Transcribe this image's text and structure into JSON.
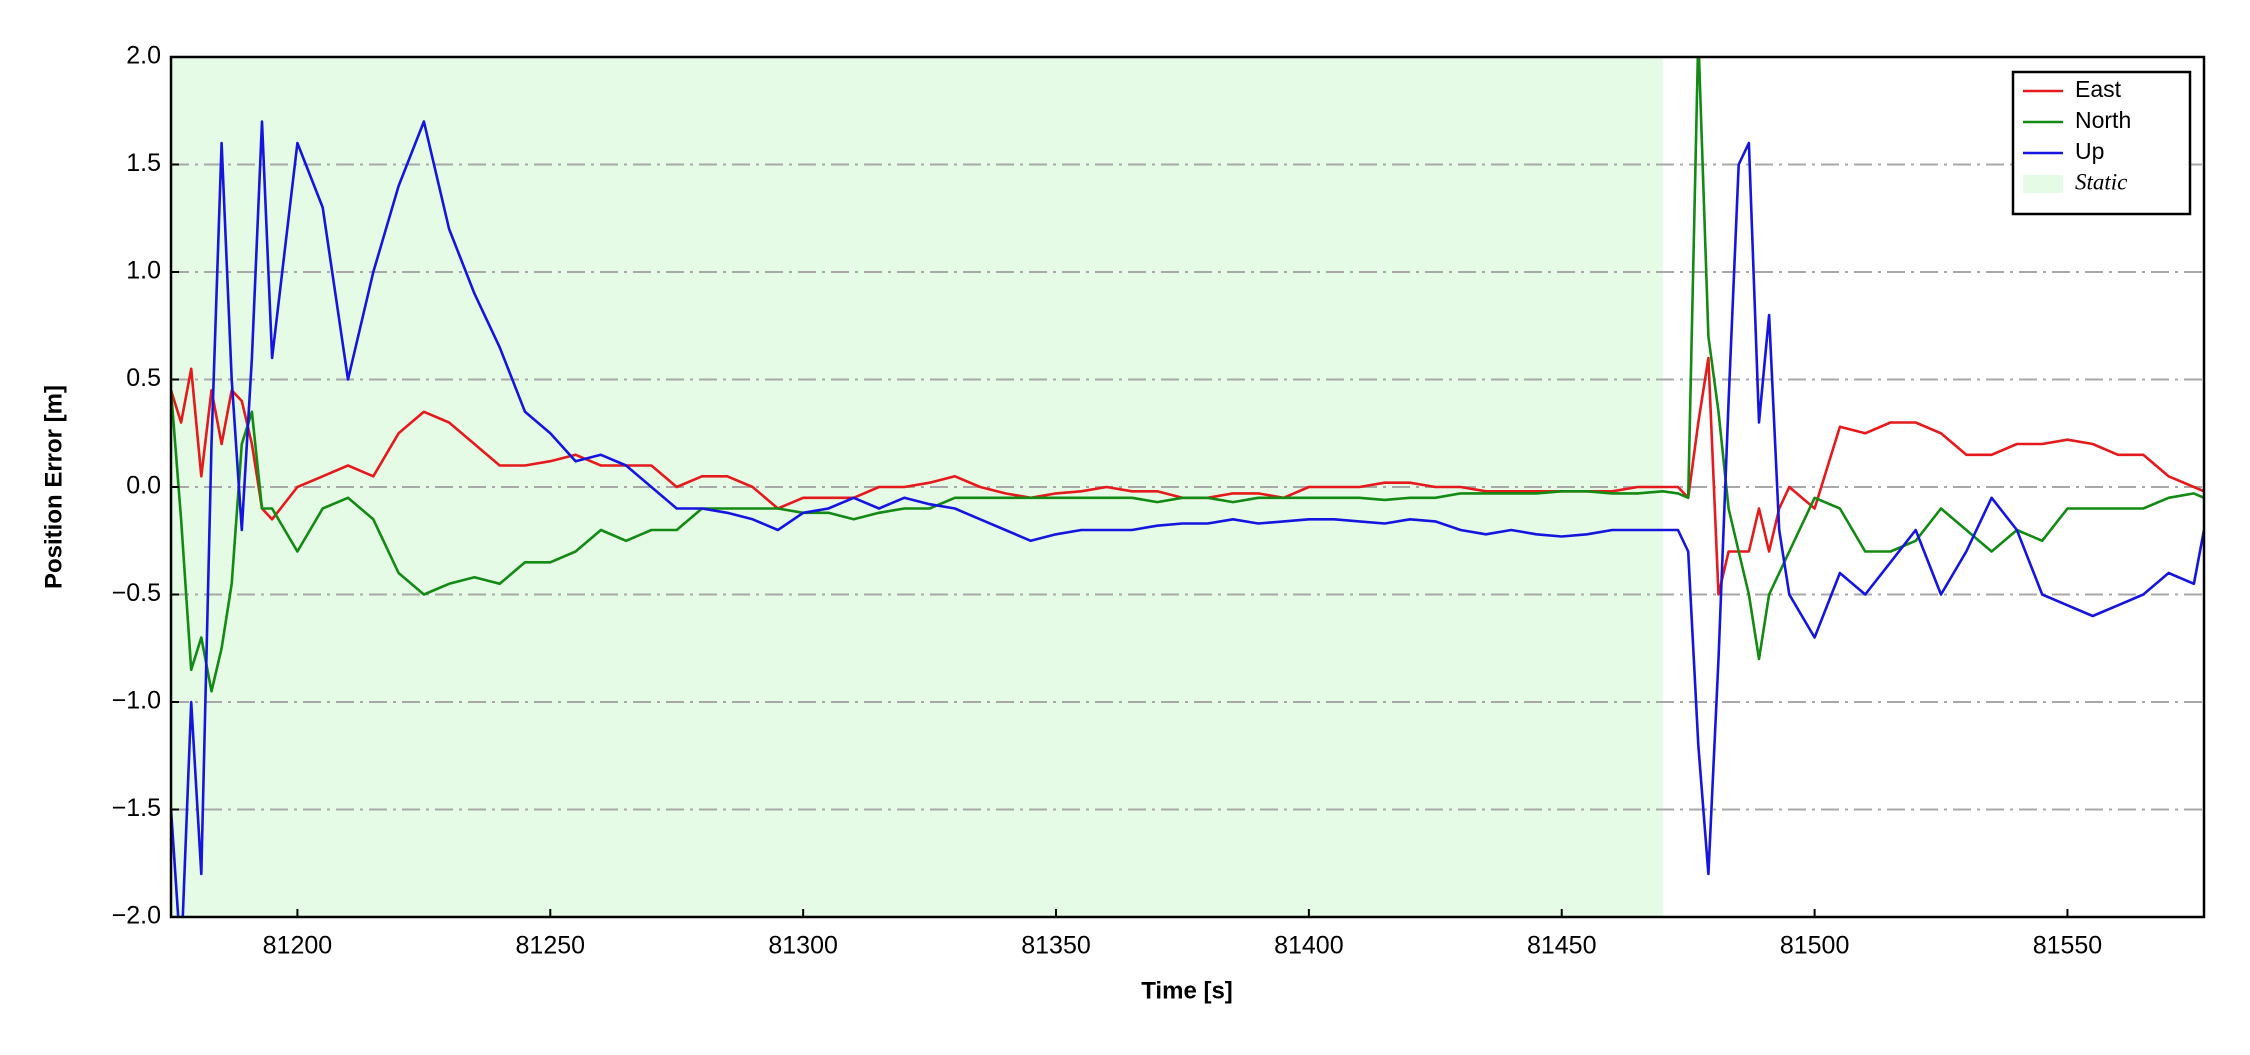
{
  "chart_data": {
    "type": "line",
    "xlabel": "Time [s]",
    "ylabel": "Position Error [m]",
    "x": [
      81175,
      81177,
      81179,
      81181,
      81183,
      81185,
      81187,
      81189,
      81191,
      81193,
      81195,
      81200,
      81205,
      81210,
      81215,
      81220,
      81225,
      81230,
      81235,
      81240,
      81245,
      81250,
      81255,
      81260,
      81265,
      81270,
      81275,
      81280,
      81285,
      81290,
      81295,
      81300,
      81305,
      81310,
      81315,
      81320,
      81325,
      81330,
      81335,
      81340,
      81345,
      81350,
      81355,
      81360,
      81365,
      81370,
      81375,
      81380,
      81385,
      81390,
      81395,
      81400,
      81405,
      81410,
      81415,
      81420,
      81425,
      81430,
      81435,
      81440,
      81445,
      81450,
      81455,
      81460,
      81465,
      81470,
      81473,
      81475,
      81477,
      81479,
      81481,
      81483,
      81485,
      81487,
      81489,
      81491,
      81493,
      81495,
      81500,
      81505,
      81510,
      81515,
      81520,
      81525,
      81530,
      81535,
      81540,
      81545,
      81550,
      81555,
      81560,
      81565,
      81570,
      81575,
      81577
    ],
    "series": [
      {
        "name": "East",
        "color": "#e41a1c",
        "values": [
          0.45,
          0.3,
          0.55,
          0.05,
          0.45,
          0.2,
          0.45,
          0.4,
          0.2,
          -0.1,
          -0.15,
          0.0,
          0.05,
          0.1,
          0.05,
          0.25,
          0.35,
          0.3,
          0.2,
          0.1,
          0.1,
          0.12,
          0.15,
          0.1,
          0.1,
          0.1,
          0.0,
          0.05,
          0.05,
          0.0,
          -0.1,
          -0.05,
          -0.05,
          -0.05,
          0.0,
          0.0,
          0.02,
          0.05,
          0.0,
          -0.03,
          -0.05,
          -0.03,
          -0.02,
          0.0,
          -0.02,
          -0.02,
          -0.05,
          -0.05,
          -0.03,
          -0.03,
          -0.05,
          0.0,
          0.0,
          0.0,
          0.02,
          0.02,
          0.0,
          0.0,
          -0.02,
          -0.02,
          -0.02,
          -0.02,
          -0.02,
          -0.02,
          0.0,
          0.0,
          0.0,
          -0.05,
          0.3,
          0.6,
          -0.5,
          -0.3,
          -0.3,
          -0.3,
          -0.1,
          -0.3,
          -0.1,
          0.0,
          -0.1,
          0.28,
          0.25,
          0.3,
          0.3,
          0.25,
          0.15,
          0.15,
          0.2,
          0.2,
          0.22,
          0.2,
          0.15,
          0.15,
          0.05,
          0.0,
          -0.02
        ]
      },
      {
        "name": "North",
        "color": "#138a13",
        "values": [
          0.45,
          -0.15,
          -0.85,
          -0.7,
          -0.95,
          -0.75,
          -0.45,
          0.2,
          0.35,
          -0.1,
          -0.1,
          -0.3,
          -0.1,
          -0.05,
          -0.15,
          -0.4,
          -0.5,
          -0.45,
          -0.42,
          -0.45,
          -0.35,
          -0.35,
          -0.3,
          -0.2,
          -0.25,
          -0.2,
          -0.2,
          -0.1,
          -0.1,
          -0.1,
          -0.1,
          -0.12,
          -0.12,
          -0.15,
          -0.12,
          -0.1,
          -0.1,
          -0.05,
          -0.05,
          -0.05,
          -0.05,
          -0.05,
          -0.05,
          -0.05,
          -0.05,
          -0.07,
          -0.05,
          -0.05,
          -0.07,
          -0.05,
          -0.05,
          -0.05,
          -0.05,
          -0.05,
          -0.06,
          -0.05,
          -0.05,
          -0.03,
          -0.03,
          -0.03,
          -0.03,
          -0.02,
          -0.02,
          -0.03,
          -0.03,
          -0.02,
          -0.03,
          -0.05,
          2.1,
          0.7,
          0.35,
          -0.1,
          -0.3,
          -0.5,
          -0.8,
          -0.5,
          -0.4,
          -0.3,
          -0.05,
          -0.1,
          -0.3,
          -0.3,
          -0.25,
          -0.1,
          -0.2,
          -0.3,
          -0.2,
          -0.25,
          -0.1,
          -0.1,
          -0.1,
          -0.1,
          -0.05,
          -0.03,
          -0.05
        ]
      },
      {
        "name": "Up",
        "color": "#1515e0",
        "values": [
          -1.5,
          -2.2,
          -1.0,
          -1.8,
          0.2,
          1.6,
          0.5,
          -0.2,
          0.6,
          1.7,
          0.6,
          1.6,
          1.3,
          0.5,
          1.0,
          1.4,
          1.7,
          1.2,
          0.9,
          0.65,
          0.35,
          0.25,
          0.12,
          0.15,
          0.1,
          0.0,
          -0.1,
          -0.1,
          -0.12,
          -0.15,
          -0.2,
          -0.12,
          -0.1,
          -0.05,
          -0.1,
          -0.05,
          -0.08,
          -0.1,
          -0.15,
          -0.2,
          -0.25,
          -0.22,
          -0.2,
          -0.2,
          -0.2,
          -0.18,
          -0.17,
          -0.17,
          -0.15,
          -0.17,
          -0.16,
          -0.15,
          -0.15,
          -0.16,
          -0.17,
          -0.15,
          -0.16,
          -0.2,
          -0.22,
          -0.2,
          -0.22,
          -0.23,
          -0.22,
          -0.2,
          -0.2,
          -0.2,
          -0.2,
          -0.3,
          -1.2,
          -1.8,
          -0.8,
          0.4,
          1.5,
          1.6,
          0.3,
          0.8,
          -0.2,
          -0.5,
          -0.7,
          -0.4,
          -0.5,
          -0.35,
          -0.2,
          -0.5,
          -0.3,
          -0.05,
          -0.2,
          -0.5,
          -0.55,
          -0.6,
          -0.55,
          -0.5,
          -0.4,
          -0.45,
          -0.2
        ]
      }
    ],
    "spans": [
      {
        "name": "Static",
        "x0": 81175,
        "x1": 81470,
        "color": "#e6fbe6"
      }
    ],
    "xlim": [
      81175,
      81577
    ],
    "ylim": [
      -2.0,
      2.0
    ],
    "xticks": [
      81200,
      81250,
      81300,
      81350,
      81400,
      81450,
      81500,
      81550
    ],
    "yticks": [
      {
        "value": -2.0,
        "label": "−2.0"
      },
      {
        "value": -1.5,
        "label": "−1.5"
      },
      {
        "value": -1.0,
        "label": "−1.0"
      },
      {
        "value": -0.5,
        "label": "−0.5"
      },
      {
        "value": 0.0,
        "label": "0.0"
      },
      {
        "value": 0.5,
        "label": "0.5"
      },
      {
        "value": 1.0,
        "label": "1.0"
      },
      {
        "value": 1.5,
        "label": "1.5"
      },
      {
        "value": 2.0,
        "label": "2.0"
      }
    ],
    "grid": true,
    "legend": "upper right"
  }
}
